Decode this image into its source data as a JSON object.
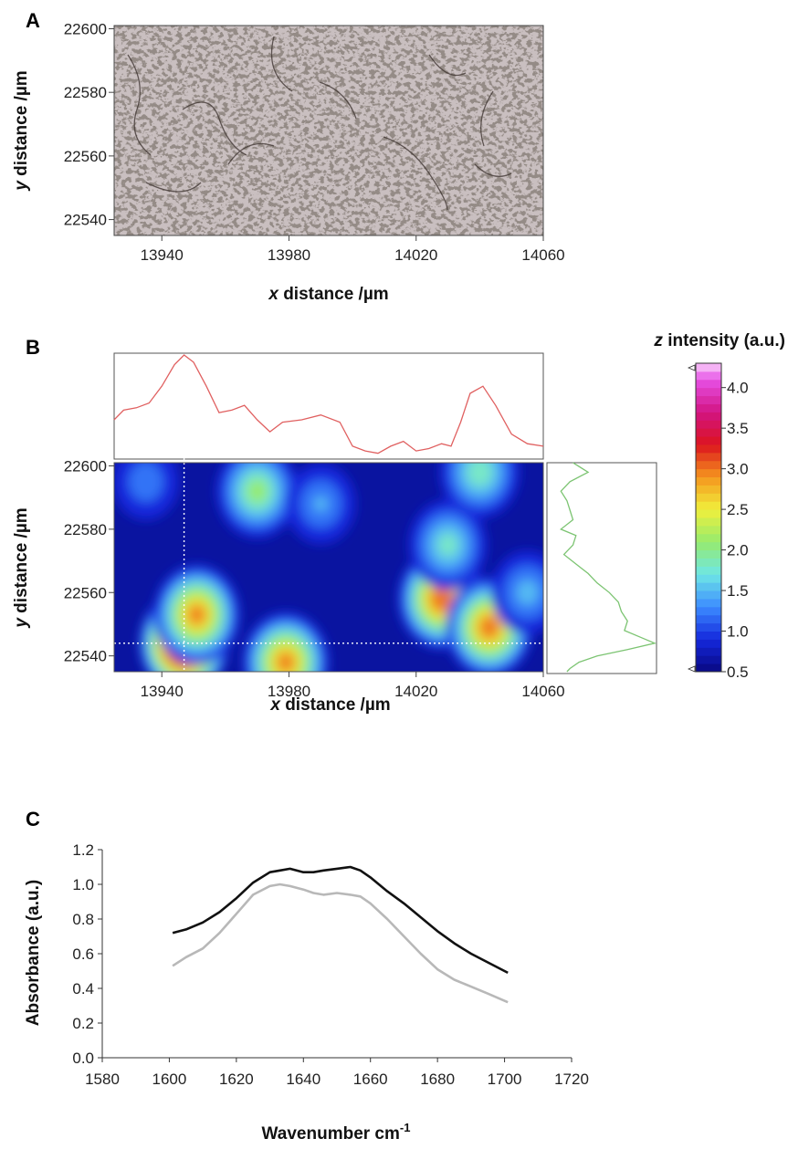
{
  "panels": [
    {
      "label": "A"
    },
    {
      "label": "B"
    },
    {
      "label": "C"
    }
  ],
  "chart_data": [
    {
      "panel": "A",
      "type": "image",
      "xlabel": "distance /µm",
      "xlabel_italic": "x",
      "ylabel": "distance /µm",
      "ylabel_italic": "y",
      "xlim": [
        13925,
        14060
      ],
      "ylim": [
        22535,
        22601
      ],
      "xticks": [
        13940,
        13980,
        14020,
        14060
      ],
      "yticks": [
        22540,
        22560,
        22580,
        22600
      ]
    },
    {
      "panel": "B",
      "type": "heatmap",
      "xlabel": "distance /µm",
      "xlabel_italic": "x",
      "ylabel": "distance /µm",
      "ylabel_italic": "y",
      "xlim": [
        13925,
        14060
      ],
      "ylim": [
        22535,
        22601
      ],
      "xticks": [
        13940,
        13980,
        14020,
        14060
      ],
      "yticks": [
        22540,
        22560,
        22580,
        22600
      ],
      "colorbar": {
        "title": "intensity (a.u.)",
        "title_italic": "z",
        "min": 0.5,
        "max": 4.3,
        "ticks": [
          "4.0",
          "3.5",
          "3.0",
          "2.5",
          "2.0",
          "1.5",
          "1.0",
          "0.5"
        ]
      },
      "crosshair": {
        "x": 13947,
        "y": 22544
      },
      "hotspots": [
        {
          "x": 13947,
          "y": 22544,
          "z": 4.3
        },
        {
          "x": 13951,
          "y": 22553,
          "z": 3.0
        },
        {
          "x": 13979,
          "y": 22538,
          "z": 3.0
        },
        {
          "x": 14028,
          "y": 22558,
          "z": 3.2
        },
        {
          "x": 14043,
          "y": 22549,
          "z": 3.1
        },
        {
          "x": 13970,
          "y": 22592,
          "z": 2.2
        },
        {
          "x": 14040,
          "y": 22598,
          "z": 2.0
        },
        {
          "x": 14030,
          "y": 22575,
          "z": 1.9
        },
        {
          "x": 13990,
          "y": 22588,
          "z": 1.5
        },
        {
          "x": 14055,
          "y": 22560,
          "z": 1.6
        },
        {
          "x": 13935,
          "y": 22595,
          "z": 1.4
        }
      ],
      "profile_x": {
        "x": [
          13925,
          13928,
          13932,
          13936,
          13940,
          13944,
          13947,
          13950,
          13954,
          13958,
          13962,
          13966,
          13970,
          13974,
          13978,
          13984,
          13990,
          13996,
          14000,
          14004,
          14008,
          14012,
          14016,
          14020,
          14024,
          14028,
          14031,
          14034,
          14037,
          14041,
          14045,
          14050,
          14055,
          14060
        ],
        "z": [
          1.6,
          2.0,
          2.1,
          2.3,
          3.0,
          3.9,
          4.3,
          4.0,
          3.0,
          1.9,
          2.0,
          2.2,
          1.6,
          1.1,
          1.5,
          1.6,
          1.8,
          1.5,
          0.5,
          0.3,
          0.2,
          0.5,
          0.7,
          0.3,
          0.4,
          0.6,
          0.5,
          1.5,
          2.7,
          3.0,
          2.2,
          1.0,
          0.6,
          0.5
        ]
      },
      "profile_y": {
        "y": [
          22601,
          22598,
          22595,
          22592,
          22589,
          22586,
          22583,
          22580,
          22578,
          22575,
          22572,
          22569,
          22566,
          22563,
          22560,
          22557,
          22554,
          22551,
          22548,
          22546,
          22544,
          22542,
          22540,
          22538,
          22536,
          22535
        ],
        "z": [
          0.8,
          1.3,
          0.7,
          0.4,
          0.6,
          0.7,
          0.8,
          0.4,
          0.9,
          0.8,
          0.5,
          0.9,
          1.3,
          1.6,
          2.0,
          2.3,
          2.4,
          2.6,
          2.5,
          3.0,
          3.5,
          2.6,
          1.6,
          1.0,
          0.7,
          0.6
        ]
      }
    },
    {
      "panel": "C",
      "type": "line",
      "xlabel": "Wavenumber cm",
      "xlabel_sup": "-1",
      "ylabel": "Absorbance (a.u.)",
      "xlim": [
        1580,
        1720
      ],
      "ylim": [
        0.0,
        1.2
      ],
      "xticks": [
        "1580",
        "1600",
        "1620",
        "1640",
        "1660",
        "1680",
        "1700",
        "1720"
      ],
      "yticks": [
        "0.0",
        "0.2",
        "0.4",
        "0.6",
        "0.8",
        "1.0",
        "1.2"
      ],
      "grid": false,
      "series": [
        {
          "color": "#111111",
          "x": [
            1601,
            1605,
            1610,
            1615,
            1620,
            1625,
            1630,
            1633,
            1636,
            1640,
            1643,
            1646,
            1650,
            1654,
            1657,
            1660,
            1665,
            1670,
            1675,
            1680,
            1685,
            1690,
            1695,
            1701
          ],
          "y": [
            0.72,
            0.74,
            0.78,
            0.84,
            0.92,
            1.01,
            1.07,
            1.08,
            1.09,
            1.07,
            1.07,
            1.08,
            1.09,
            1.1,
            1.08,
            1.04,
            0.96,
            0.89,
            0.81,
            0.73,
            0.66,
            0.6,
            0.55,
            0.49
          ]
        },
        {
          "color": "#b8b8b8",
          "x": [
            1601,
            1605,
            1610,
            1615,
            1620,
            1625,
            1630,
            1633,
            1636,
            1640,
            1643,
            1646,
            1650,
            1654,
            1657,
            1660,
            1665,
            1670,
            1675,
            1680,
            1685,
            1690,
            1695,
            1701
          ],
          "y": [
            0.53,
            0.58,
            0.63,
            0.72,
            0.83,
            0.94,
            0.99,
            1.0,
            0.99,
            0.97,
            0.95,
            0.94,
            0.95,
            0.94,
            0.93,
            0.89,
            0.8,
            0.7,
            0.6,
            0.51,
            0.45,
            0.41,
            0.37,
            0.32
          ]
        }
      ]
    }
  ]
}
